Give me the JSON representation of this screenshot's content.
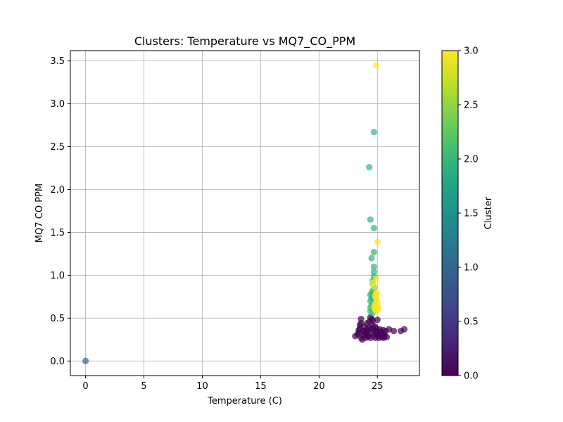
{
  "chart_data": {
    "type": "scatter",
    "title": "Clusters: Temperature vs MQ7_CO_PPM",
    "xlabel": "Temperature (C)",
    "ylabel": "MQ7 CO PPM",
    "xlim": [
      -1.3,
      28.6
    ],
    "ylim": [
      -0.17,
      3.62
    ],
    "xticks": [
      "0",
      "5",
      "10",
      "15",
      "20",
      "25"
    ],
    "yticks": [
      "0.0",
      "0.5",
      "1.0",
      "1.5",
      "2.0",
      "2.5",
      "3.0",
      "3.5"
    ],
    "grid": true,
    "colorbar": {
      "label": "Cluster",
      "range": [
        0,
        3
      ],
      "ticks": [
        "0.0",
        "0.5",
        "1.0",
        "1.5",
        "2.0",
        "2.5",
        "3.0"
      ],
      "colormap": "viridis"
    },
    "series": [
      {
        "cluster": 0,
        "color": "#440154",
        "points": [
          [
            23.1,
            0.29
          ],
          [
            23.3,
            0.31
          ],
          [
            23.4,
            0.33
          ],
          [
            23.4,
            0.36
          ],
          [
            23.5,
            0.38
          ],
          [
            23.5,
            0.42
          ],
          [
            23.6,
            0.44
          ],
          [
            23.6,
            0.27
          ],
          [
            23.7,
            0.25
          ],
          [
            23.8,
            0.3
          ],
          [
            23.9,
            0.34
          ],
          [
            23.9,
            0.4
          ],
          [
            24.0,
            0.27
          ],
          [
            24.0,
            0.32
          ],
          [
            24.1,
            0.37
          ],
          [
            24.1,
            0.44
          ],
          [
            24.2,
            0.29
          ],
          [
            24.2,
            0.35
          ],
          [
            24.3,
            0.39
          ],
          [
            24.3,
            0.46
          ],
          [
            24.4,
            0.51
          ],
          [
            24.4,
            0.27
          ],
          [
            24.5,
            0.33
          ],
          [
            24.5,
            0.38
          ],
          [
            24.6,
            0.42
          ],
          [
            24.6,
            0.47
          ],
          [
            24.7,
            0.3
          ],
          [
            24.7,
            0.36
          ],
          [
            24.8,
            0.4
          ],
          [
            24.8,
            0.27
          ],
          [
            24.9,
            0.33
          ],
          [
            24.9,
            0.38
          ],
          [
            25.0,
            0.3
          ],
          [
            25.0,
            0.35
          ],
          [
            25.1,
            0.27
          ],
          [
            25.1,
            0.32
          ],
          [
            25.2,
            0.37
          ],
          [
            25.3,
            0.28
          ],
          [
            25.3,
            0.34
          ],
          [
            25.4,
            0.3
          ],
          [
            25.5,
            0.36
          ],
          [
            25.5,
            0.27
          ],
          [
            25.6,
            0.31
          ],
          [
            25.7,
            0.35
          ],
          [
            25.8,
            0.28
          ],
          [
            26.0,
            0.37
          ],
          [
            26.4,
            0.35
          ],
          [
            27.0,
            0.35
          ],
          [
            27.3,
            0.37
          ],
          [
            23.6,
            0.49
          ],
          [
            24.5,
            0.49
          ],
          [
            25.0,
            0.48
          ],
          [
            24.2,
            0.29
          ],
          [
            23.8,
            0.35
          ],
          [
            25.6,
            0.28
          ]
        ]
      },
      {
        "cluster": 1,
        "color": "#31688e",
        "points": [
          [
            0,
            0
          ]
        ]
      },
      {
        "cluster": 2,
        "color": "#35b779",
        "points": [
          [
            24.3,
            2.26
          ],
          [
            24.7,
            2.67
          ],
          [
            24.4,
            1.65
          ],
          [
            24.7,
            1.55
          ],
          [
            24.7,
            1.27
          ],
          [
            24.5,
            1.2
          ],
          [
            24.7,
            1.1
          ],
          [
            24.7,
            1.04
          ],
          [
            24.7,
            0.99
          ],
          [
            24.6,
            0.94
          ],
          [
            24.6,
            0.9
          ],
          [
            24.7,
            0.86
          ],
          [
            24.6,
            0.82
          ],
          [
            24.5,
            0.79
          ],
          [
            24.4,
            0.77
          ],
          [
            24.6,
            0.74
          ],
          [
            24.4,
            0.7
          ],
          [
            24.7,
            0.68
          ],
          [
            24.5,
            0.65
          ],
          [
            24.4,
            0.62
          ],
          [
            24.7,
            0.6
          ],
          [
            24.6,
            0.56
          ],
          [
            24.4,
            0.58
          ],
          [
            24.8,
            0.63
          ],
          [
            24.5,
            0.73
          ]
        ]
      },
      {
        "cluster": 3,
        "color": "#fde725",
        "points": [
          [
            24.9,
            3.45
          ],
          [
            25.0,
            1.39
          ],
          [
            24.9,
            0.96
          ],
          [
            24.6,
            0.91
          ],
          [
            24.7,
            0.87
          ],
          [
            25.0,
            0.78
          ],
          [
            24.9,
            0.73
          ],
          [
            25.0,
            0.7
          ],
          [
            24.8,
            0.67
          ],
          [
            25.0,
            0.64
          ],
          [
            25.1,
            0.61
          ],
          [
            24.8,
            0.6
          ],
          [
            24.7,
            0.63
          ],
          [
            24.9,
            0.58
          ],
          [
            25.0,
            0.66
          ],
          [
            24.8,
            0.76
          ],
          [
            24.9,
            0.8
          ]
        ]
      }
    ]
  }
}
